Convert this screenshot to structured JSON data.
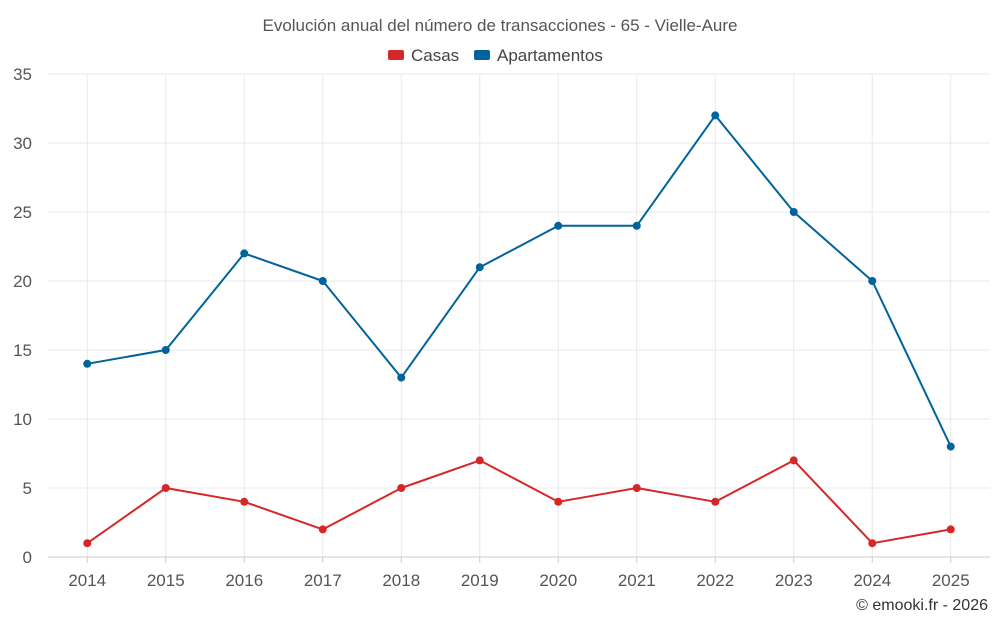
{
  "chart_data": {
    "type": "line",
    "title": "Evolución anual del número de transacciones - 65 - Vielle-Aure",
    "categories": [
      "2014",
      "2015",
      "2016",
      "2017",
      "2018",
      "2019",
      "2020",
      "2021",
      "2022",
      "2023",
      "2024",
      "2025"
    ],
    "series": [
      {
        "name": "Casas",
        "color": "#d62728",
        "values": [
          1,
          5,
          4,
          2,
          5,
          7,
          4,
          5,
          4,
          7,
          1,
          2
        ]
      },
      {
        "name": "Apartamentos",
        "color": "#00639c",
        "values": [
          14,
          15,
          22,
          20,
          13,
          21,
          24,
          24,
          32,
          25,
          20,
          8
        ]
      }
    ],
    "yticks": [
      "0",
      "5",
      "10",
      "15",
      "20",
      "25",
      "30",
      "35"
    ],
    "ylim": [
      0,
      35
    ],
    "xlabel": "",
    "ylabel": "",
    "legend_position": "top-center",
    "grid": true
  },
  "credit": "© emooki.fr - 2026"
}
